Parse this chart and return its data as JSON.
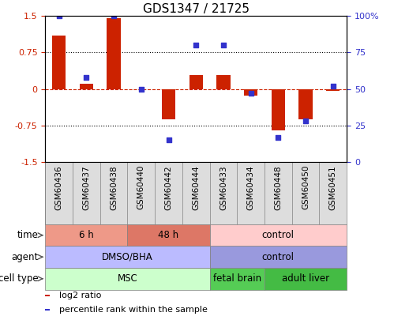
{
  "title": "GDS1347 / 21725",
  "samples": [
    "GSM60436",
    "GSM60437",
    "GSM60438",
    "GSM60440",
    "GSM60442",
    "GSM60444",
    "GSM60433",
    "GSM60434",
    "GSM60448",
    "GSM60450",
    "GSM60451"
  ],
  "log2_ratio": [
    1.1,
    0.1,
    1.45,
    0.0,
    -0.62,
    0.28,
    0.28,
    -0.14,
    -0.85,
    -0.63,
    -0.04
  ],
  "percentile": [
    100,
    58,
    100,
    50,
    15,
    80,
    80,
    47,
    17,
    28,
    52
  ],
  "ylim": [
    -1.5,
    1.5
  ],
  "yticks_left": [
    -1.5,
    -0.75,
    0.0,
    0.75,
    1.5
  ],
  "yticks_right": [
    0,
    25,
    50,
    75,
    100
  ],
  "hlines": [
    0.75,
    -0.75
  ],
  "bar_color": "#cc2200",
  "dot_color": "#3333cc",
  "zero_line_color": "#cc2200",
  "cell_type_groups": [
    {
      "label": "MSC",
      "start": 0,
      "end": 5,
      "color": "#ccffcc"
    },
    {
      "label": "fetal brain",
      "start": 6,
      "end": 7,
      "color": "#55cc55"
    },
    {
      "label": "adult liver",
      "start": 8,
      "end": 10,
      "color": "#44bb44"
    }
  ],
  "agent_groups": [
    {
      "label": "DMSO/BHA",
      "start": 0,
      "end": 5,
      "color": "#bbbbff"
    },
    {
      "label": "control",
      "start": 6,
      "end": 10,
      "color": "#9999dd"
    }
  ],
  "time_groups": [
    {
      "label": "6 h",
      "start": 0,
      "end": 2,
      "color": "#ee9988"
    },
    {
      "label": "48 h",
      "start": 3,
      "end": 5,
      "color": "#dd7766"
    },
    {
      "label": "control",
      "start": 6,
      "end": 10,
      "color": "#ffcccc"
    }
  ],
  "row_labels": [
    "cell type",
    "agent",
    "time"
  ],
  "legend_items": [
    {
      "color": "#cc2200",
      "label": "log2 ratio"
    },
    {
      "color": "#3333cc",
      "label": "percentile rank within the sample"
    }
  ],
  "background_color": "#ffffff",
  "plot_bg_color": "#ffffff",
  "title_fontsize": 11,
  "tick_fontsize": 8,
  "label_fontsize": 8.5,
  "bar_width": 0.5,
  "sample_bg_color": "#dddddd"
}
